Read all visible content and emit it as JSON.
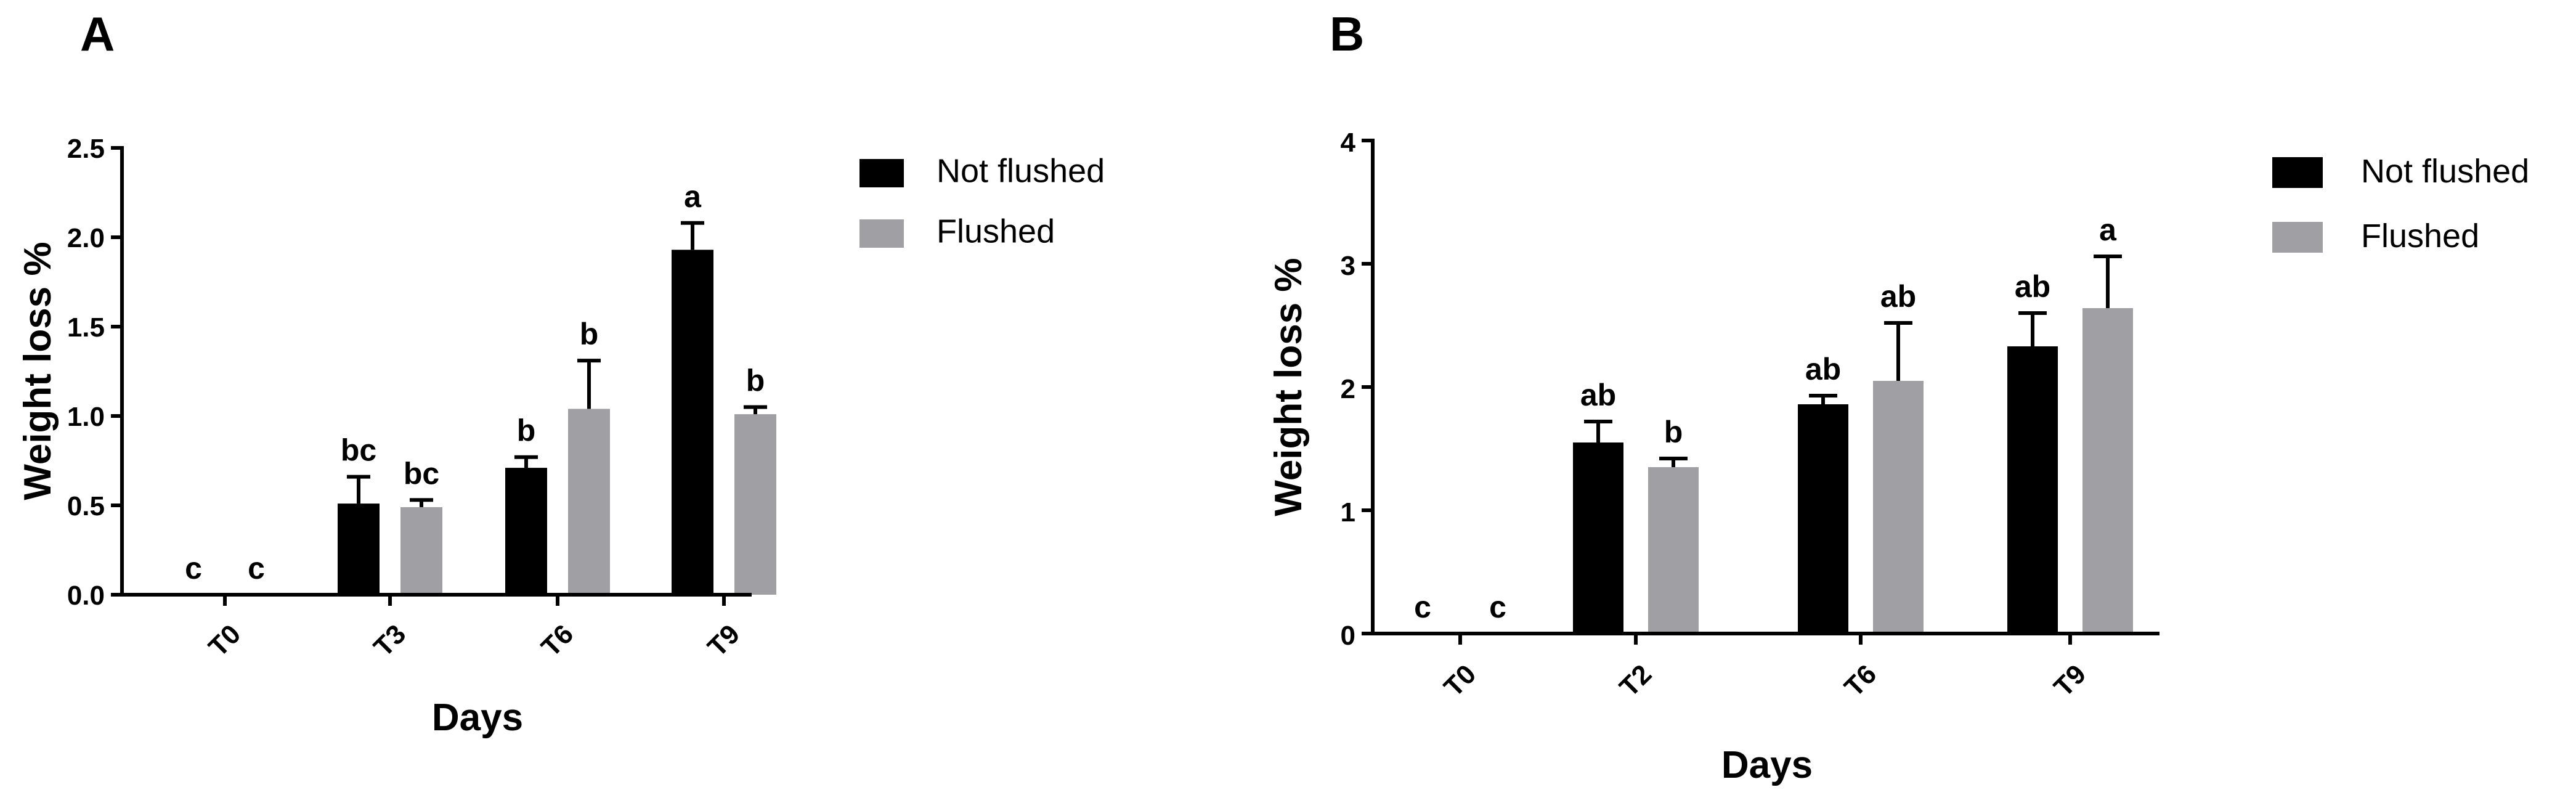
{
  "chart_data": [
    {
      "panel": "A",
      "type": "bar",
      "categories": [
        "T0",
        "T3",
        "T6",
        "T9"
      ],
      "series": [
        {
          "name": "Not flushed",
          "color": "#000000",
          "values": [
            0,
            0.51,
            0.71,
            1.93
          ],
          "errors": [
            0,
            0.15,
            0.06,
            0.15
          ],
          "letters": [
            "c",
            "bc",
            "b",
            "a"
          ]
        },
        {
          "name": "Flushed",
          "color": "#a0a0a4",
          "values": [
            0,
            0.49,
            1.04,
            1.01
          ],
          "errors": [
            0,
            0.04,
            0.27,
            0.04
          ],
          "letters": [
            "c",
            "bc",
            "b",
            "b"
          ]
        }
      ],
      "xlabel": "Days",
      "ylabel": "Weight loss %",
      "ylim": [
        0,
        2.5
      ],
      "yticks": [
        0.0,
        0.5,
        1.0,
        1.5,
        2.0,
        2.5
      ],
      "ytick_labels": [
        "0.0",
        "0.5",
        "1.0",
        "1.5",
        "2.0",
        "2.5"
      ],
      "legend_position": "right"
    },
    {
      "panel": "B",
      "type": "bar",
      "categories": [
        "T0",
        "T2",
        "T6",
        "T9"
      ],
      "series": [
        {
          "name": "Not flushed",
          "color": "#000000",
          "values": [
            0,
            1.55,
            1.86,
            2.33
          ],
          "errors": [
            0,
            0.17,
            0.07,
            0.27
          ],
          "letters": [
            "c",
            "ab",
            "ab",
            "ab"
          ]
        },
        {
          "name": "Flushed",
          "color": "#a0a0a4",
          "values": [
            0,
            1.35,
            2.05,
            2.64
          ],
          "errors": [
            0,
            0.07,
            0.47,
            0.42
          ],
          "letters": [
            "c",
            "b",
            "ab",
            "a"
          ]
        }
      ],
      "xlabel": "Days",
      "ylabel": "Weight loss %",
      "ylim": [
        0,
        4
      ],
      "yticks": [
        0,
        1,
        2,
        3,
        4
      ],
      "ytick_labels": [
        "0",
        "1",
        "2",
        "3",
        "4"
      ],
      "legend_position": "right"
    }
  ]
}
